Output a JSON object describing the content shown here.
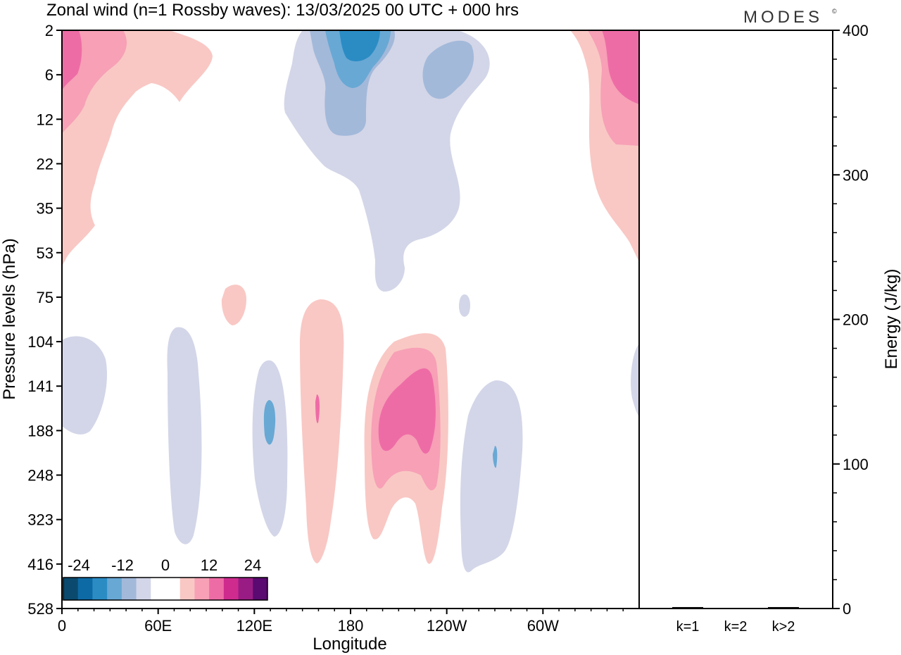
{
  "chart_data": {
    "type": "heatmap",
    "title": "Zonal wind (n=1 Rossby waves):  13/03/2025  00 UTC  + 000 hrs",
    "logo": "MODES",
    "logo_mark": "©",
    "xlabel": "Longitude",
    "ylabel": "Pressure levels (hPa)",
    "x_ticks": [
      "0",
      "60E",
      "120E",
      "180",
      "120W",
      "60W"
    ],
    "x_tick_degrees": [
      0,
      60,
      120,
      180,
      240,
      300
    ],
    "y_ticks": [
      "2",
      "6",
      "12",
      "22",
      "35",
      "53",
      "75",
      "104",
      "141",
      "188",
      "248",
      "323",
      "416",
      "528"
    ],
    "y2label": "Energy (J/kg)",
    "y2_ticks": [
      "0",
      "100",
      "200",
      "300",
      "400"
    ],
    "y2_tick_values": [
      0,
      100,
      200,
      300,
      400
    ],
    "y2lim": [
      0,
      400
    ],
    "colorbar": {
      "tick_labels": [
        "-24",
        "-12",
        "0",
        "12",
        "24"
      ],
      "colors": [
        "#0b4a6e",
        "#0d6aa5",
        "#2b8cc4",
        "#68a8d4",
        "#a3b9da",
        "#d3d6e8",
        "#ffffff",
        "#ffffff",
        "#f9c8c4",
        "#f7a0b6",
        "#ee6ca6",
        "#cf2b8e",
        "#991c84",
        "#5a0a70"
      ]
    },
    "energy_bars": {
      "categories": [
        "k=1",
        "k=2",
        "k>2"
      ],
      "values": [
        1,
        0,
        1
      ]
    }
  }
}
